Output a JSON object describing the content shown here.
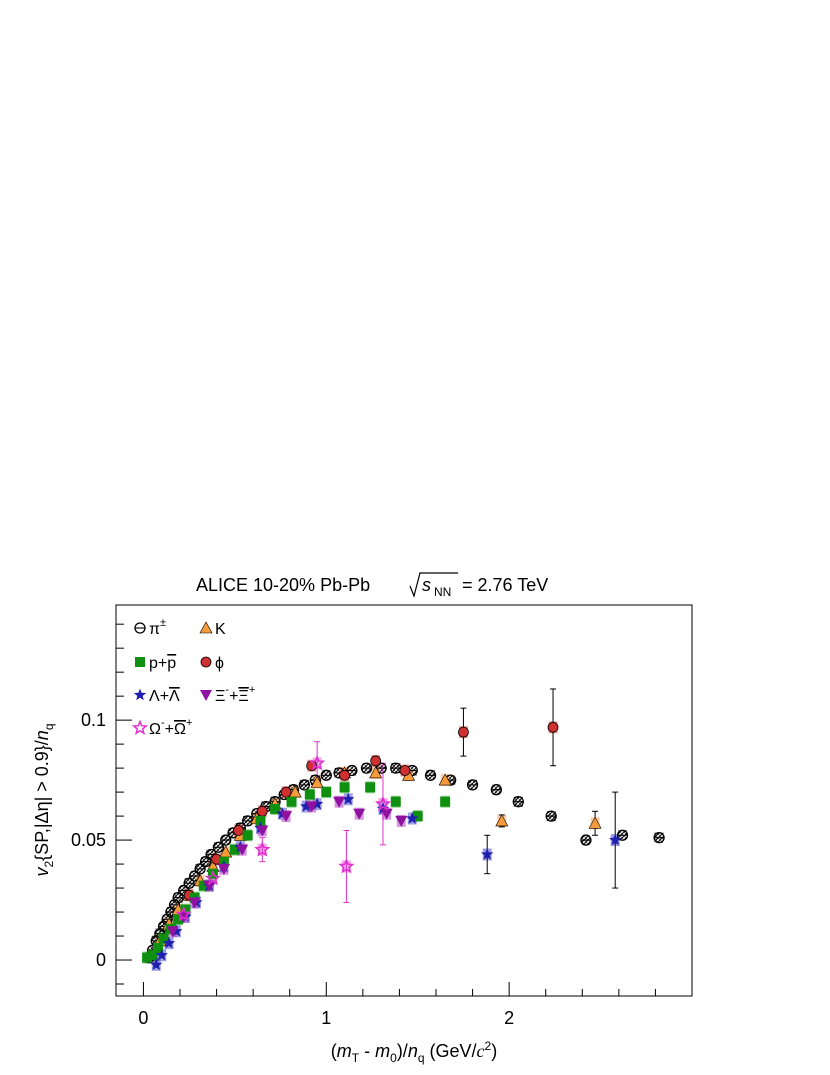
{
  "chart_data": {
    "type": "scatter",
    "title": {
      "prefix": "ALICE 10-20% Pb-Pb",
      "sqrt_s": "s",
      "sub": "NN",
      "suffix": "= 2.76 TeV"
    },
    "xlabel": {
      "open": "(",
      "m1": "m",
      "m1_sub": "T",
      "minus": " - ",
      "m2": "m",
      "m2_sub": "0",
      "close": ")/",
      "n": "n",
      "n_sub": "q",
      "unit": " (GeV/",
      "c": "c",
      "c_sup": "2",
      "end": ")"
    },
    "ylabel": {
      "v": "v",
      "v_sub": "2",
      "mid": "{SP,|Δη| > 0.9}/",
      "n": "n",
      "n_sub": "q"
    },
    "xlim": [
      -0.15,
      3.0
    ],
    "ylim": [
      -0.015,
      0.148
    ],
    "xticks": [
      "0",
      "1",
      "2"
    ],
    "yticks": [
      "0",
      "0.05",
      "0.1"
    ],
    "grid": false,
    "legend_position": "top-left",
    "series": [
      {
        "name": "π±",
        "label_main": "π",
        "label_sup": "±",
        "marker": "circle-open",
        "color": "#000000",
        "sys_color": "#444444",
        "points": [
          [
            0.03,
            0.001
          ],
          [
            0.05,
            0.004
          ],
          [
            0.07,
            0.008
          ],
          [
            0.09,
            0.011
          ],
          [
            0.11,
            0.014
          ],
          [
            0.13,
            0.017
          ],
          [
            0.15,
            0.02
          ],
          [
            0.17,
            0.023
          ],
          [
            0.19,
            0.026
          ],
          [
            0.22,
            0.029
          ],
          [
            0.25,
            0.032
          ],
          [
            0.28,
            0.035
          ],
          [
            0.31,
            0.038
          ],
          [
            0.34,
            0.041
          ],
          [
            0.37,
            0.044
          ],
          [
            0.41,
            0.047
          ],
          [
            0.45,
            0.05
          ],
          [
            0.49,
            0.053
          ],
          [
            0.53,
            0.055
          ],
          [
            0.57,
            0.058
          ],
          [
            0.62,
            0.061
          ],
          [
            0.67,
            0.064
          ],
          [
            0.72,
            0.066
          ],
          [
            0.77,
            0.069
          ],
          [
            0.82,
            0.071
          ],
          [
            0.88,
            0.073
          ],
          [
            0.94,
            0.075
          ],
          [
            1.0,
            0.077
          ],
          [
            1.07,
            0.078
          ],
          [
            1.14,
            0.079
          ],
          [
            1.22,
            0.08
          ],
          [
            1.3,
            0.08
          ],
          [
            1.38,
            0.08
          ],
          [
            1.47,
            0.079
          ],
          [
            1.57,
            0.077
          ],
          [
            1.68,
            0.075
          ],
          [
            1.8,
            0.073
          ],
          [
            1.93,
            0.071
          ],
          [
            2.05,
            0.066
          ],
          [
            2.23,
            0.06
          ],
          [
            2.42,
            0.05
          ],
          [
            2.62,
            0.052
          ],
          [
            2.82,
            0.051
          ]
        ]
      },
      {
        "name": "K",
        "label_main": "K",
        "label_sup": "",
        "marker": "triangle",
        "color": "#f79a3a",
        "sys_color": "#f7a35c",
        "points": [
          [
            0.05,
            0.002
          ],
          [
            0.09,
            0.008
          ],
          [
            0.14,
            0.015
          ],
          [
            0.19,
            0.021
          ],
          [
            0.25,
            0.027
          ],
          [
            0.31,
            0.033
          ],
          [
            0.38,
            0.039
          ],
          [
            0.45,
            0.045
          ],
          [
            0.53,
            0.052
          ],
          [
            0.62,
            0.059
          ],
          [
            0.72,
            0.065
          ],
          [
            0.83,
            0.07
          ],
          [
            0.95,
            0.074
          ],
          [
            1.1,
            0.078
          ],
          [
            1.27,
            0.078
          ],
          [
            1.45,
            0.077
          ],
          [
            1.65,
            0.075
          ],
          [
            1.96,
            0.058
          ],
          [
            2.47,
            0.057
          ]
        ],
        "errors": [
          [
            1.96,
            0.0025
          ],
          [
            2.47,
            0.005
          ]
        ]
      },
      {
        "name": "ϕ",
        "label_main": "ϕ",
        "label_sup": "",
        "marker": "circle",
        "color": "#d03030",
        "sys_color": "#e05050",
        "points": [
          [
            0.25,
            0.027
          ],
          [
            0.4,
            0.042
          ],
          [
            0.52,
            0.054
          ],
          [
            0.65,
            0.062
          ],
          [
            0.78,
            0.07
          ],
          [
            0.92,
            0.081
          ],
          [
            1.1,
            0.077
          ],
          [
            1.27,
            0.083
          ],
          [
            1.43,
            0.079
          ],
          [
            1.75,
            0.095
          ],
          [
            2.24,
            0.097
          ]
        ],
        "errors": [
          [
            1.75,
            0.01
          ],
          [
            2.24,
            0.016
          ]
        ]
      },
      {
        "name": "p+p̄",
        "label_main": "p+",
        "label_sup": "",
        "label_bar": "p",
        "marker": "square",
        "color": "#109010",
        "sys_color": "#30b030",
        "points": [
          [
            0.02,
            0.001
          ],
          [
            0.05,
            0.002
          ],
          [
            0.08,
            0.005
          ],
          [
            0.11,
            0.009
          ],
          [
            0.15,
            0.013
          ],
          [
            0.19,
            0.017
          ],
          [
            0.23,
            0.021
          ],
          [
            0.28,
            0.026
          ],
          [
            0.33,
            0.031
          ],
          [
            0.38,
            0.036
          ],
          [
            0.44,
            0.041
          ],
          [
            0.5,
            0.046
          ],
          [
            0.57,
            0.052
          ],
          [
            0.64,
            0.058
          ],
          [
            0.72,
            0.063
          ],
          [
            0.81,
            0.066
          ],
          [
            0.91,
            0.069
          ],
          [
            1.0,
            0.07
          ],
          [
            1.1,
            0.072
          ],
          [
            1.24,
            0.072
          ],
          [
            1.38,
            0.066
          ],
          [
            1.5,
            0.06
          ],
          [
            1.65,
            0.066
          ]
        ]
      },
      {
        "name": "Λ+Λ̄",
        "label_main": "Λ+",
        "label_sup": "",
        "label_bar": "Λ",
        "marker": "star",
        "color": "#2020b0",
        "sys_color": "#5050d0",
        "points": [
          [
            0.07,
            -0.002
          ],
          [
            0.1,
            0.002
          ],
          [
            0.14,
            0.007
          ],
          [
            0.18,
            0.012
          ],
          [
            0.23,
            0.018
          ],
          [
            0.29,
            0.024
          ],
          [
            0.36,
            0.031
          ],
          [
            0.44,
            0.039
          ],
          [
            0.53,
            0.047
          ],
          [
            0.64,
            0.055
          ],
          [
            0.76,
            0.061
          ],
          [
            0.89,
            0.064
          ],
          [
            0.95,
            0.065
          ],
          [
            1.12,
            0.067
          ],
          [
            1.31,
            0.063
          ],
          [
            1.47,
            0.059
          ],
          [
            1.88,
            0.044
          ],
          [
            2.58,
            0.05
          ]
        ],
        "errors": [
          [
            1.88,
            0.008
          ],
          [
            2.58,
            0.02
          ]
        ]
      },
      {
        "name": "Ξ-+Ξ̄+",
        "label_main": "Ξ",
        "label_sup": "-",
        "label_bar": "Ξ",
        "label_bar_sup": "+",
        "marker": "triangle-down",
        "color": "#9010a0",
        "sys_color": "#b040c0",
        "points": [
          [
            0.16,
            0.012
          ],
          [
            0.22,
            0.018
          ],
          [
            0.28,
            0.024
          ],
          [
            0.36,
            0.031
          ],
          [
            0.44,
            0.038
          ],
          [
            0.54,
            0.046
          ],
          [
            0.65,
            0.054
          ],
          [
            0.78,
            0.06
          ],
          [
            0.92,
            0.064
          ],
          [
            1.07,
            0.066
          ],
          [
            1.18,
            0.061
          ],
          [
            1.33,
            0.061
          ],
          [
            1.41,
            0.058
          ]
        ]
      },
      {
        "name": "Ω-+Ω̄+",
        "label_main": "Ω",
        "label_sup": "-",
        "label_bar": "Ω",
        "label_bar_sup": "+",
        "marker": "star-open",
        "color": "#e030d0",
        "sys_color": "#e860d8",
        "points": [
          [
            0.22,
            0.019
          ],
          [
            0.38,
            0.034
          ],
          [
            0.65,
            0.046
          ],
          [
            0.95,
            0.082
          ],
          [
            1.11,
            0.039
          ],
          [
            1.31,
            0.065
          ]
        ],
        "errors": [
          [
            0.65,
            0.005
          ],
          [
            0.95,
            0.009
          ],
          [
            1.11,
            0.015
          ],
          [
            1.31,
            0.017
          ]
        ]
      }
    ]
  }
}
